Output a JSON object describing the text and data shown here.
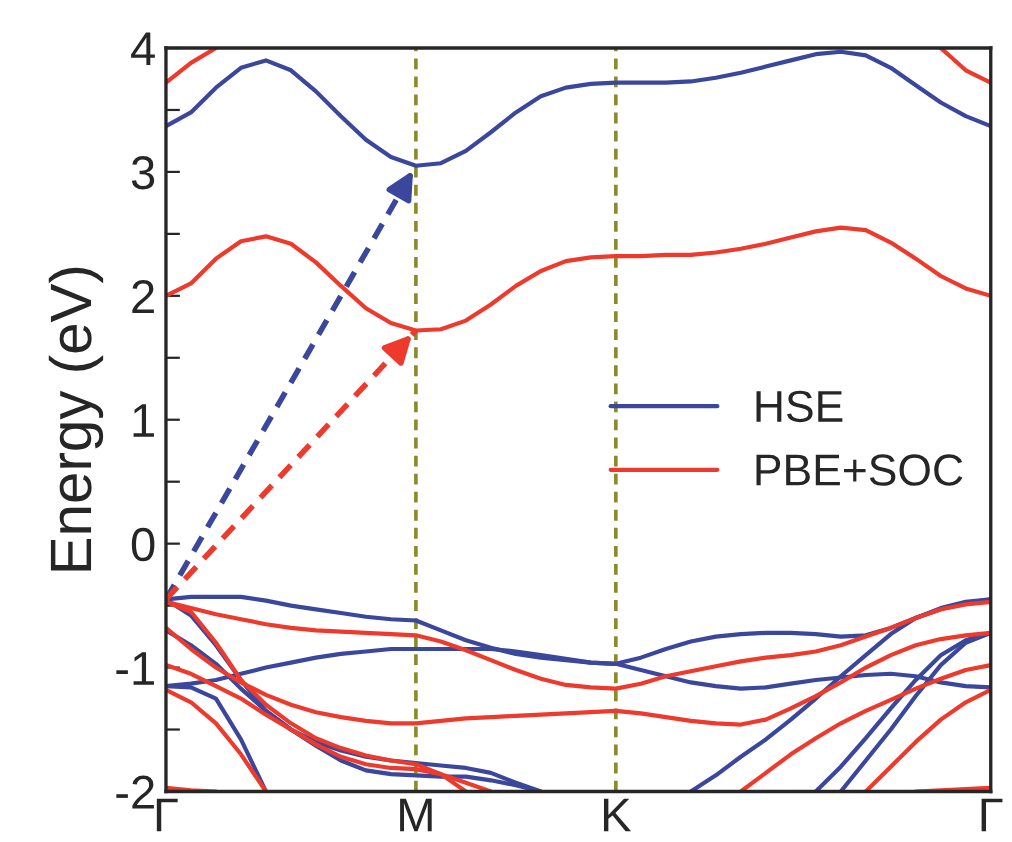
{
  "chart_data": {
    "type": "line",
    "ylabel": "Energy (eV)",
    "categories": [
      "Γ",
      null,
      null,
      null,
      null,
      null,
      null,
      null,
      null,
      null,
      "M",
      null,
      null,
      null,
      null,
      null,
      null,
      null,
      "K",
      null,
      null,
      null,
      null,
      null,
      null,
      null,
      null,
      null,
      null,
      null,
      null,
      null,
      null,
      "Γ"
    ],
    "ylim": [
      -2,
      4
    ],
    "yticks": [
      -2,
      {
        "value": -1.5,
        "label": null
      },
      -1,
      {
        "value": -0.5,
        "label": null
      },
      0,
      {
        "value": 0.5,
        "label": null
      },
      1,
      {
        "value": 1.5,
        "label": null
      },
      2,
      {
        "value": 2.5,
        "label": null
      },
      3,
      {
        "value": 3.5,
        "label": null
      },
      4
    ],
    "grid": false,
    "legend": "right",
    "marker": "none",
    "line_style": "solid",
    "ref_lines": [
      {
        "axis": "x",
        "value": "M",
        "color": "#8a8a2a",
        "line_style": "dashed"
      },
      {
        "axis": "x",
        "value": "K",
        "color": "#8a8a2a",
        "line_style": "dashed"
      }
    ],
    "series": [
      {
        "name": "HSE",
        "color": "#3b479c",
        "values": [
          3.37,
          3.48,
          3.68,
          3.84,
          3.9,
          3.82,
          3.65,
          3.45,
          3.26,
          3.12,
          3.05,
          3.07,
          3.17,
          3.32,
          3.48,
          3.61,
          3.68,
          3.71,
          3.72,
          3.72,
          3.72,
          3.73,
          3.76,
          3.8,
          3.85,
          3.9,
          3.95,
          3.97,
          3.94,
          3.84,
          3.7,
          3.56,
          3.45,
          3.37
        ]
      },
      {
        "name": "PBE+SOC",
        "color": "#ee3a2c",
        "values": [
          2.0,
          2.1,
          2.3,
          2.44,
          2.48,
          2.42,
          2.27,
          2.08,
          1.9,
          1.78,
          1.72,
          1.73,
          1.8,
          1.93,
          2.08,
          2.2,
          2.28,
          2.31,
          2.32,
          2.32,
          2.33,
          2.33,
          2.35,
          2.38,
          2.42,
          2.47,
          2.52,
          2.55,
          2.53,
          2.43,
          2.3,
          2.16,
          2.06,
          2.0
        ]
      },
      {
        "color": "#ee3a2c",
        "values": [
          3.72,
          3.88,
          4.0,
          null,
          null,
          null,
          null,
          null,
          null,
          null,
          null,
          null,
          null,
          null,
          null,
          null,
          null,
          null,
          null,
          null,
          null,
          null,
          null,
          null,
          null,
          null,
          null,
          null,
          null,
          null,
          null,
          null,
          null,
          null
        ]
      },
      {
        "color": "#ee3a2c",
        "values": [
          null,
          null,
          null,
          null,
          null,
          null,
          null,
          null,
          null,
          null,
          null,
          null,
          null,
          null,
          null,
          null,
          null,
          null,
          null,
          null,
          null,
          null,
          null,
          null,
          null,
          null,
          null,
          null,
          null,
          null,
          null,
          4.0,
          3.82,
          3.72
        ]
      },
      {
        "color": "#3b479c",
        "values": [
          -0.45,
          -0.43,
          -0.43,
          -0.43,
          -0.46,
          -0.5,
          -0.53,
          -0.56,
          -0.59,
          -0.61,
          -0.62,
          -0.7,
          -0.78,
          -0.84,
          -0.89,
          -0.92,
          -0.94,
          -0.96,
          -0.97,
          -1.02,
          -1.07,
          -1.12,
          -1.15,
          -1.17,
          -1.16,
          -1.13,
          -1.1,
          -1.08,
          -1.06,
          -1.05,
          -1.07,
          -1.12,
          -1.15,
          -1.16
        ]
      },
      {
        "color": "#3b479c",
        "values": [
          -0.45,
          -0.58,
          -0.82,
          -1.1,
          -1.35,
          -1.5,
          -1.6,
          -1.67,
          -1.72,
          -1.75,
          -1.77,
          -1.79,
          -1.81,
          -1.85,
          -1.93,
          -2.0,
          null,
          null,
          null,
          null,
          null,
          null,
          null,
          null,
          null,
          null,
          null,
          null,
          null,
          null,
          null,
          null,
          null,
          null
        ]
      },
      {
        "color": "#3b479c",
        "values": [
          -0.7,
          -0.82,
          -0.97,
          -1.17,
          -1.35,
          -1.5,
          -1.63,
          -1.75,
          -1.83,
          -1.86,
          -1.87,
          -1.88,
          -1.88,
          -1.91,
          -1.95,
          -2.0,
          null,
          null,
          null,
          null,
          null,
          null,
          null,
          null,
          null,
          null,
          null,
          null,
          null,
          null,
          null,
          null,
          null,
          null
        ]
      },
      {
        "color": "#3b479c",
        "values": [
          -1.15,
          -1.13,
          -1.1,
          -1.05,
          -1.0,
          -0.96,
          -0.92,
          -0.89,
          -0.87,
          -0.85,
          -0.85,
          -0.85,
          -0.85,
          -0.85,
          -0.87,
          -0.9,
          -0.93,
          -0.96,
          -0.97,
          -0.92,
          -0.85,
          -0.79,
          -0.75,
          -0.73,
          -0.72,
          -0.72,
          -0.73,
          -0.75,
          -0.74,
          -0.68,
          -0.6,
          -0.53,
          -0.48,
          -0.45
        ]
      },
      {
        "color": "#3b479c",
        "values": [
          -1.15,
          -1.16,
          -1.25,
          -1.58,
          -2.0,
          null,
          null,
          null,
          null,
          null,
          null,
          null,
          null,
          null,
          null,
          null,
          null,
          null,
          null,
          null,
          null,
          null,
          null,
          null,
          null,
          null,
          null,
          null,
          null,
          null,
          null,
          null,
          null,
          null
        ]
      },
      {
        "color": "#3b479c",
        "values": [
          null,
          null,
          null,
          null,
          null,
          null,
          null,
          null,
          null,
          null,
          null,
          null,
          null,
          null,
          null,
          null,
          null,
          null,
          null,
          null,
          null,
          -2.0,
          -1.87,
          -1.72,
          -1.58,
          -1.42,
          -1.25,
          -1.07,
          -0.9,
          -0.73,
          -0.6,
          -0.52,
          -0.47,
          -0.45
        ]
      },
      {
        "color": "#3b479c",
        "values": [
          null,
          null,
          null,
          null,
          null,
          null,
          null,
          null,
          null,
          null,
          null,
          null,
          null,
          null,
          null,
          null,
          null,
          null,
          null,
          null,
          null,
          null,
          null,
          null,
          null,
          null,
          -2.0,
          -1.8,
          -1.57,
          -1.33,
          -1.1,
          -0.9,
          -0.78,
          -0.72
        ]
      },
      {
        "color": "#3b479c",
        "values": [
          null,
          null,
          null,
          null,
          null,
          null,
          null,
          null,
          null,
          null,
          null,
          null,
          null,
          null,
          null,
          null,
          null,
          null,
          null,
          null,
          null,
          null,
          null,
          null,
          null,
          null,
          null,
          -2.0,
          -1.75,
          -1.5,
          -1.23,
          -0.98,
          -0.8,
          -0.72
        ]
      },
      {
        "color": "#ee3a2c",
        "values": [
          -0.47,
          -0.52,
          -0.57,
          -0.61,
          -0.65,
          -0.68,
          -0.7,
          -0.71,
          -0.72,
          -0.73,
          -0.74,
          -0.79,
          -0.86,
          -0.94,
          -1.02,
          -1.09,
          -1.14,
          -1.16,
          -1.17,
          -1.13,
          -1.07,
          -1.03,
          -0.99,
          -0.95,
          -0.92,
          -0.9,
          -0.87,
          -0.82,
          -0.75,
          -0.68,
          -0.6,
          -0.53,
          -0.49,
          -0.47
        ]
      },
      {
        "color": "#ee3a2c",
        "values": [
          -0.47,
          -0.55,
          -0.8,
          -1.1,
          -1.3,
          -1.45,
          -1.57,
          -1.65,
          -1.71,
          -1.75,
          -1.78,
          -1.86,
          -2.0,
          null,
          null,
          null,
          null,
          null,
          null,
          null,
          null,
          null,
          null,
          null,
          null,
          null,
          null,
          null,
          null,
          null,
          null,
          null,
          null,
          null
        ]
      },
      {
        "color": "#ee3a2c",
        "values": [
          -0.68,
          -0.85,
          -1.0,
          -1.12,
          -1.22,
          -1.3,
          -1.36,
          -1.4,
          -1.43,
          -1.45,
          -1.45,
          -1.43,
          -1.41,
          -1.4,
          -1.39,
          -1.38,
          -1.37,
          -1.36,
          -1.35,
          -1.37,
          -1.4,
          -1.43,
          -1.45,
          -1.46,
          -1.42,
          -1.33,
          -1.23,
          -1.12,
          -1.0,
          -0.9,
          -0.82,
          -0.77,
          -0.74,
          -0.72
        ]
      },
      {
        "color": "#ee3a2c",
        "values": [
          -0.98,
          -1.05,
          -1.15,
          -1.25,
          -1.38,
          -1.5,
          -1.62,
          -1.72,
          -1.78,
          -1.81,
          -1.82,
          -1.86,
          -1.93,
          -2.0,
          null,
          null,
          null,
          null,
          null,
          null,
          null,
          null,
          null,
          null,
          null,
          null,
          null,
          null,
          null,
          null,
          null,
          null,
          null,
          null
        ]
      },
      {
        "color": "#ee3a2c",
        "values": [
          -1.18,
          -1.28,
          -1.45,
          -1.7,
          -2.0,
          null,
          null,
          null,
          null,
          null,
          null,
          null,
          null,
          null,
          null,
          null,
          null,
          null,
          null,
          null,
          null,
          null,
          null,
          null,
          null,
          null,
          null,
          null,
          null,
          null,
          null,
          null,
          null,
          null
        ]
      },
      {
        "color": "#ee3a2c",
        "values": [
          -1.97,
          -1.99,
          -2.0,
          null,
          null,
          null,
          null,
          null,
          null,
          null,
          null,
          null,
          null,
          null,
          null,
          null,
          null,
          null,
          null,
          null,
          null,
          null,
          null,
          null,
          null,
          null,
          null,
          null,
          null,
          null,
          null,
          null,
          null,
          null
        ]
      },
      {
        "color": "#ee3a2c",
        "values": [
          null,
          null,
          null,
          null,
          null,
          null,
          null,
          null,
          null,
          null,
          null,
          null,
          null,
          null,
          null,
          null,
          null,
          null,
          null,
          null,
          null,
          null,
          null,
          -2.0,
          -1.85,
          -1.7,
          -1.57,
          -1.45,
          -1.35,
          -1.26,
          -1.17,
          -1.09,
          -1.02,
          -0.98
        ]
      },
      {
        "color": "#ee3a2c",
        "values": [
          null,
          null,
          null,
          null,
          null,
          null,
          null,
          null,
          null,
          null,
          null,
          null,
          null,
          null,
          null,
          null,
          null,
          null,
          null,
          null,
          null,
          null,
          null,
          null,
          null,
          null,
          null,
          null,
          -2.0,
          -1.8,
          -1.6,
          -1.42,
          -1.28,
          -1.18
        ]
      },
      {
        "color": "#ee3a2c",
        "values": [
          null,
          null,
          null,
          null,
          null,
          null,
          null,
          null,
          null,
          null,
          null,
          null,
          null,
          null,
          null,
          null,
          null,
          null,
          null,
          null,
          null,
          null,
          null,
          null,
          null,
          null,
          null,
          null,
          null,
          null,
          -2.0,
          -1.99,
          -1.98,
          -1.97
        ]
      },
      {
        "color": "#3b479c",
        "line_style": "dashed",
        "values": [
          -0.45,
          null,
          null,
          null,
          null,
          null,
          null,
          null,
          null,
          null,
          3.05,
          null,
          null,
          null,
          null,
          null,
          null,
          null,
          null,
          null,
          null,
          null,
          null,
          null,
          null,
          null,
          null,
          null,
          null,
          null,
          null,
          null,
          null,
          null
        ]
      },
      {
        "color": "#ee3a2c",
        "line_style": "dashed",
        "values": [
          -0.45,
          null,
          null,
          null,
          null,
          null,
          null,
          null,
          null,
          null,
          1.72,
          null,
          null,
          null,
          null,
          null,
          null,
          null,
          null,
          null,
          null,
          null,
          null,
          null,
          null,
          null,
          null,
          null,
          null,
          null,
          null,
          null,
          null,
          null
        ]
      }
    ]
  }
}
